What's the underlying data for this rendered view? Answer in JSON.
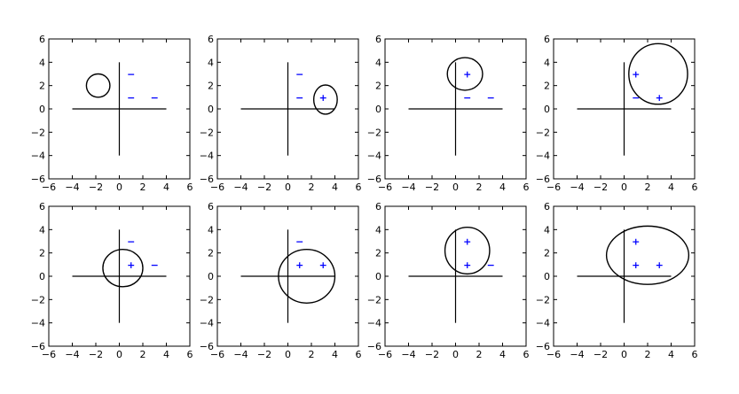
{
  "chart_data": [
    {
      "type": "scatter",
      "xlim": [
        -6,
        6
      ],
      "ylim": [
        -6,
        6
      ],
      "xticks": [
        "−6",
        "−4",
        "−2",
        "0",
        "2",
        "4",
        "6"
      ],
      "yticks": [
        "−6",
        "−4",
        "−2",
        "0",
        "2",
        "4",
        "6"
      ],
      "grid": false,
      "points": [
        {
          "x": 1,
          "y": 3,
          "label": "−"
        },
        {
          "x": 1,
          "y": 1,
          "label": "−"
        },
        {
          "x": 3,
          "y": 1,
          "label": "−"
        }
      ],
      "circle": {
        "cx": -1.8,
        "cy": 2.0,
        "rx": 1.0,
        "ry": 1.0
      }
    },
    {
      "type": "scatter",
      "xlim": [
        -6,
        6
      ],
      "ylim": [
        -6,
        6
      ],
      "xticks": [
        "−6",
        "−4",
        "−2",
        "0",
        "2",
        "4",
        "6"
      ],
      "yticks": [
        "−6",
        "−4",
        "−2",
        "0",
        "2",
        "4",
        "6"
      ],
      "grid": false,
      "points": [
        {
          "x": 1,
          "y": 3,
          "label": "−"
        },
        {
          "x": 1,
          "y": 1,
          "label": "−"
        },
        {
          "x": 3,
          "y": 1,
          "label": "+"
        }
      ],
      "circle": {
        "cx": 3.2,
        "cy": 0.8,
        "rx": 1.0,
        "ry": 1.25
      }
    },
    {
      "type": "scatter",
      "xlim": [
        -6,
        6
      ],
      "ylim": [
        -6,
        6
      ],
      "xticks": [
        "−6",
        "−4",
        "−2",
        "0",
        "2",
        "4",
        "6"
      ],
      "yticks": [
        "−6",
        "−4",
        "−2",
        "0",
        "2",
        "4",
        "6"
      ],
      "grid": false,
      "points": [
        {
          "x": 1,
          "y": 3,
          "label": "+"
        },
        {
          "x": 1,
          "y": 1,
          "label": "−"
        },
        {
          "x": 3,
          "y": 1,
          "label": "−"
        }
      ],
      "circle": {
        "cx": 0.8,
        "cy": 3.0,
        "rx": 1.5,
        "ry": 1.4
      }
    },
    {
      "type": "scatter",
      "xlim": [
        -6,
        6
      ],
      "ylim": [
        -6,
        6
      ],
      "xticks": [
        "−6",
        "−4",
        "−2",
        "0",
        "2",
        "4",
        "6"
      ],
      "yticks": [
        "−6",
        "−4",
        "−2",
        "0",
        "2",
        "4",
        "6"
      ],
      "grid": false,
      "points": [
        {
          "x": 1,
          "y": 3,
          "label": "+"
        },
        {
          "x": 1,
          "y": 1,
          "label": "−"
        },
        {
          "x": 3,
          "y": 1,
          "label": "+"
        }
      ],
      "circle": {
        "cx": 2.9,
        "cy": 3.0,
        "rx": 2.5,
        "ry": 2.6
      }
    },
    {
      "type": "scatter",
      "xlim": [
        -6,
        6
      ],
      "ylim": [
        -6,
        6
      ],
      "xticks": [
        "−6",
        "−4",
        "−2",
        "0",
        "2",
        "4",
        "6"
      ],
      "yticks": [
        "−6",
        "−4",
        "−2",
        "0",
        "2",
        "4",
        "6"
      ],
      "grid": false,
      "points": [
        {
          "x": 1,
          "y": 3,
          "label": "−"
        },
        {
          "x": 1,
          "y": 1,
          "label": "+"
        },
        {
          "x": 3,
          "y": 1,
          "label": "−"
        }
      ],
      "circle": {
        "cx": 0.3,
        "cy": 0.7,
        "rx": 1.7,
        "ry": 1.6
      }
    },
    {
      "type": "scatter",
      "xlim": [
        -6,
        6
      ],
      "ylim": [
        -6,
        6
      ],
      "xticks": [
        "−6",
        "−4",
        "−2",
        "0",
        "2",
        "4",
        "6"
      ],
      "yticks": [
        "−6",
        "−4",
        "−2",
        "0",
        "2",
        "4",
        "6"
      ],
      "grid": false,
      "points": [
        {
          "x": 1,
          "y": 3,
          "label": "−"
        },
        {
          "x": 1,
          "y": 1,
          "label": "+"
        },
        {
          "x": 3,
          "y": 1,
          "label": "+"
        }
      ],
      "circle": {
        "cx": 1.6,
        "cy": 0.0,
        "rx": 2.4,
        "ry": 2.3
      }
    },
    {
      "type": "scatter",
      "xlim": [
        -6,
        6
      ],
      "ylim": [
        -6,
        6
      ],
      "xticks": [
        "−6",
        "−4",
        "−2",
        "0",
        "2",
        "4",
        "6"
      ],
      "yticks": [
        "−6",
        "−4",
        "−2",
        "0",
        "2",
        "4",
        "6"
      ],
      "grid": false,
      "points": [
        {
          "x": 1,
          "y": 3,
          "label": "+"
        },
        {
          "x": 1,
          "y": 1,
          "label": "+"
        },
        {
          "x": 3,
          "y": 1,
          "label": "−"
        }
      ],
      "circle": {
        "cx": 1.0,
        "cy": 2.2,
        "rx": 1.9,
        "ry": 2.0
      }
    },
    {
      "type": "scatter",
      "xlim": [
        -6,
        6
      ],
      "ylim": [
        -6,
        6
      ],
      "xticks": [
        "−6",
        "−4",
        "−2",
        "0",
        "2",
        "4",
        "6"
      ],
      "yticks": [
        "−6",
        "−4",
        "−2",
        "0",
        "2",
        "4",
        "6"
      ],
      "grid": false,
      "points": [
        {
          "x": 1,
          "y": 3,
          "label": "+"
        },
        {
          "x": 1,
          "y": 1,
          "label": "+"
        },
        {
          "x": 3,
          "y": 1,
          "label": "+"
        }
      ],
      "circle": {
        "cx": 2.0,
        "cy": 1.8,
        "rx": 3.5,
        "ry": 2.5
      }
    }
  ],
  "colors": {
    "point": "#0000ff",
    "lines": "#000000",
    "frame": "#000000"
  }
}
